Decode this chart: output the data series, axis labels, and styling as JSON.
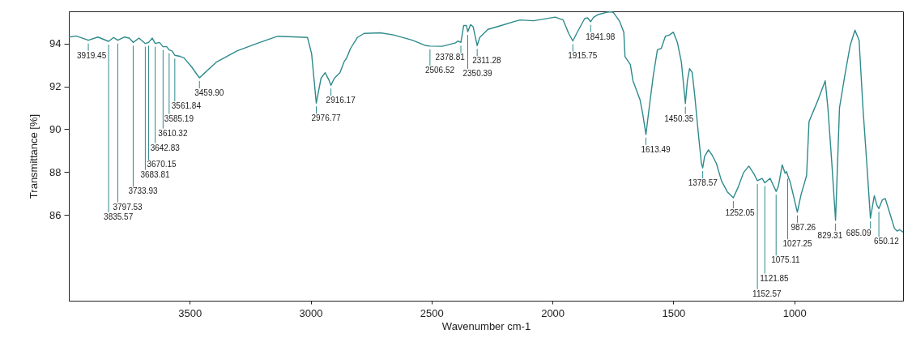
{
  "chart_data": {
    "type": "line",
    "xlabel": "Wavenumber cm-1",
    "ylabel": "Transmittance [%]",
    "x": [
      4000,
      3970,
      3919.45,
      3880,
      3835.57,
      3815,
      3797.53,
      3770,
      3750,
      3733.93,
      3710,
      3683.81,
      3670.15,
      3655,
      3642.83,
      3625,
      3610.32,
      3595,
      3585.19,
      3573,
      3561.84,
      3540,
      3524,
      3491,
      3470,
      3459.9,
      3437,
      3390,
      3303,
      3213,
      3136,
      3046,
      3013,
      2996,
      2976.77,
      2957,
      2940,
      2923,
      2916.17,
      2902,
      2879,
      2862,
      2851,
      2835,
      2807,
      2779,
      2712,
      2657,
      2579,
      2523,
      2506.52,
      2456,
      2401,
      2390,
      2378.81,
      2367,
      2356,
      2350.39,
      2339,
      2328,
      2311.28,
      2301,
      2267,
      2212,
      2156,
      2134,
      2078,
      1989,
      1956,
      1933,
      1915.75,
      1900,
      1867,
      1855,
      1841.98,
      1830,
      1811,
      1778,
      1760,
      1748,
      1722,
      1705,
      1700,
      1678,
      1667,
      1638,
      1627,
      1613.49,
      1600,
      1583,
      1566,
      1550,
      1533,
      1516,
      1500,
      1483,
      1467,
      1450.35,
      1442,
      1433,
      1422,
      1411,
      1395,
      1384,
      1378.57,
      1371,
      1355,
      1339,
      1322,
      1301,
      1277,
      1252.05,
      1233,
      1210,
      1188,
      1166,
      1152.57,
      1133,
      1121.85,
      1100,
      1075.11,
      1066,
      1050,
      1038,
      1032,
      1027.25,
      1016,
      987.26,
      972,
      949,
      939,
      906,
      872,
      861,
      845,
      829.31,
      813,
      791,
      769,
      749,
      732,
      716,
      699,
      685.09,
      669,
      658,
      650.12,
      636,
      624,
      608,
      586,
      575,
      564,
      550
    ],
    "series": [
      {
        "color": "#2e8a8c",
        "values": [
          94.3,
          94.35,
          94.15,
          94.3,
          94.1,
          94.28,
          94.15,
          94.3,
          94.25,
          94.05,
          94.25,
          94.0,
          94.05,
          94.25,
          94.0,
          94.05,
          93.85,
          93.85,
          93.7,
          93.65,
          93.45,
          93.4,
          93.33,
          92.89,
          92.55,
          92.4,
          92.64,
          93.13,
          93.66,
          94.04,
          94.34,
          94.3,
          94.28,
          93.52,
          91.22,
          92.38,
          92.64,
          92.26,
          92.05,
          92.38,
          92.64,
          93.14,
          93.33,
          93.77,
          94.28,
          94.47,
          94.5,
          94.4,
          94.15,
          93.9,
          93.88,
          93.87,
          94.03,
          94.12,
          94.05,
          94.84,
          94.84,
          94.55,
          94.88,
          94.78,
          93.9,
          94.28,
          94.66,
          94.84,
          95.03,
          95.1,
          95.06,
          95.23,
          95.1,
          94.47,
          94.12,
          94.47,
          95.16,
          95.2,
          95.02,
          95.22,
          95.35,
          95.45,
          95.48,
          95.45,
          95.03,
          94.53,
          93.39,
          93.02,
          92.26,
          91.38,
          90.74,
          89.76,
          91.0,
          92.51,
          93.71,
          93.77,
          94.34,
          94.4,
          94.53,
          94.03,
          93.14,
          91.2,
          92.26,
          92.83,
          92.64,
          91.5,
          89.6,
          88.4,
          88.2,
          88.73,
          89.04,
          88.78,
          88.4,
          87.59,
          87.08,
          86.8,
          87.27,
          87.97,
          88.28,
          87.9,
          87.6,
          87.71,
          87.5,
          87.71,
          87.1,
          87.33,
          88.34,
          87.95,
          88.02,
          87.85,
          87.5,
          86.13,
          86.95,
          87.84,
          90.36,
          91.25,
          92.26,
          91.0,
          88.47,
          85.75,
          91.0,
          92.51,
          93.9,
          94.62,
          94.15,
          91.0,
          88.22,
          85.85,
          86.9,
          86.45,
          86.3,
          86.7,
          86.77,
          86.2,
          85.38,
          85.25,
          85.31,
          85.2
        ]
      }
    ],
    "xlim": [
      4000,
      550
    ],
    "ylim": [
      82,
      95.5
    ],
    "xticks": [
      3500,
      3000,
      2500,
      2000,
      1500,
      1000
    ],
    "yticks": [
      86,
      88,
      90,
      92,
      94
    ],
    "annotations": [
      {
        "text": "3919.45",
        "x": 3919.45,
        "y": 94.15
      },
      {
        "text": "3835.57",
        "x": 3835.57,
        "y": 94.1
      },
      {
        "text": "3797.53",
        "x": 3797.53,
        "y": 94.15
      },
      {
        "text": "3733.93",
        "x": 3733.93,
        "y": 94.05
      },
      {
        "text": "3683.81",
        "x": 3683.81,
        "y": 94.0
      },
      {
        "text": "3670.15",
        "x": 3670.15,
        "y": 94.05
      },
      {
        "text": "3642.83",
        "x": 3642.83,
        "y": 94.0
      },
      {
        "text": "3610.32",
        "x": 3610.32,
        "y": 93.85
      },
      {
        "text": "3585.19",
        "x": 3585.19,
        "y": 93.7
      },
      {
        "text": "3561.84",
        "x": 3561.84,
        "y": 93.45
      },
      {
        "text": "3459.90",
        "x": 3459.9,
        "y": 92.4
      },
      {
        "text": "2976.77",
        "x": 2976.77,
        "y": 91.22
      },
      {
        "text": "2916.17",
        "x": 2916.17,
        "y": 92.05
      },
      {
        "text": "2506.52",
        "x": 2506.52,
        "y": 93.88
      },
      {
        "text": "2378.81",
        "x": 2378.81,
        "y": 94.05
      },
      {
        "text": "2350.39",
        "x": 2350.39,
        "y": 94.55
      },
      {
        "text": "2311.28",
        "x": 2311.28,
        "y": 93.9
      },
      {
        "text": "1915.75",
        "x": 1915.75,
        "y": 94.12
      },
      {
        "text": "1841.98",
        "x": 1841.98,
        "y": 95.02
      },
      {
        "text": "1613.49",
        "x": 1613.49,
        "y": 89.76
      },
      {
        "text": "1450.35",
        "x": 1450.35,
        "y": 91.2
      },
      {
        "text": "1378.57",
        "x": 1378.57,
        "y": 88.2
      },
      {
        "text": "1252.05",
        "x": 1252.05,
        "y": 86.8
      },
      {
        "text": "1152.57",
        "x": 1152.57,
        "y": 87.6
      },
      {
        "text": "1121.85",
        "x": 1121.85,
        "y": 87.5
      },
      {
        "text": "1075.11",
        "x": 1075.11,
        "y": 87.1
      },
      {
        "text": "1027.25",
        "x": 1027.25,
        "y": 87.85
      },
      {
        "text": "987.26",
        "x": 987.26,
        "y": 86.13
      },
      {
        "text": "829.31",
        "x": 829.31,
        "y": 85.75
      },
      {
        "text": "685.09",
        "x": 685.09,
        "y": 85.85
      },
      {
        "text": "650.12",
        "x": 650.12,
        "y": 86.3
      }
    ]
  }
}
